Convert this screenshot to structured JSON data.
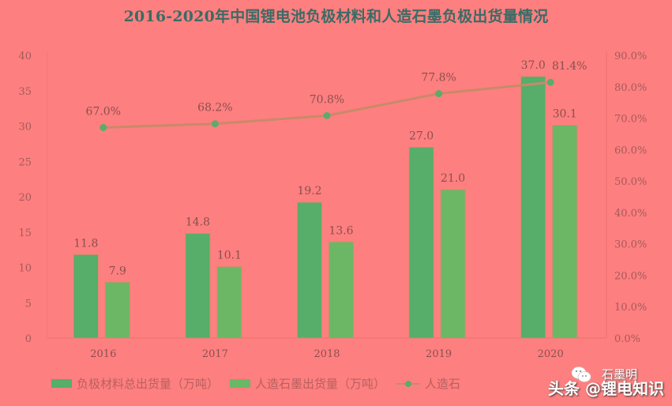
{
  "title": "2016-2020年中国锂电池负极材料和人造石墨负极出货量情况",
  "chart_data": {
    "type": "bar+line",
    "title": "2016-2020年中国锂电池负极材料和人造石墨负极出货量情况",
    "categories": [
      "2016",
      "2017",
      "2018",
      "2019",
      "2020"
    ],
    "series": [
      {
        "name": "负极材料总出货量（万吨）",
        "type": "bar",
        "axis": "left",
        "color": "#57ad6a",
        "values": [
          11.8,
          14.8,
          19.2,
          27.0,
          37.0
        ],
        "labels": [
          "11.8",
          "14.8",
          "19.2",
          "27.0",
          "37.0"
        ]
      },
      {
        "name": "人造石墨出货量（万吨）",
        "type": "bar",
        "axis": "left",
        "color": "#6cb765",
        "values": [
          7.9,
          10.1,
          13.6,
          21.0,
          30.1
        ],
        "labels": [
          "7.9",
          "10.1",
          "13.6",
          "21.0",
          "30.1"
        ]
      },
      {
        "name": "人造石墨占比",
        "type": "line",
        "axis": "right",
        "color": "#c88a6a",
        "marker_color": "#5cab6a",
        "values": [
          67.0,
          68.2,
          70.8,
          77.8,
          81.4
        ],
        "labels": [
          "67.0%",
          "68.2%",
          "70.8%",
          "77.8%",
          "81.4%"
        ]
      }
    ],
    "left_axis": {
      "ylim": [
        0,
        40
      ],
      "ticks": [
        "0",
        "5",
        "10",
        "15",
        "20",
        "25",
        "30",
        "35",
        "40"
      ]
    },
    "right_axis": {
      "ylim": [
        0,
        90
      ],
      "ticks": [
        "0.0%",
        "10.0%",
        "20.0%",
        "30.0%",
        "40.0%",
        "50.0%",
        "60.0%",
        "70.0%",
        "80.0%",
        "90.0%"
      ]
    },
    "grid": false,
    "legend_position": "bottom"
  },
  "legend": {
    "items": [
      {
        "label": "负极材料总出货量（万吨）",
        "color": "#57ad6a"
      },
      {
        "label": "人造石墨出货量（万吨）",
        "color": "#6cb765"
      },
      {
        "label": "人造石"
      }
    ]
  },
  "watermark": {
    "main": "头条 @锂电知识",
    "sub": "石墨明"
  }
}
